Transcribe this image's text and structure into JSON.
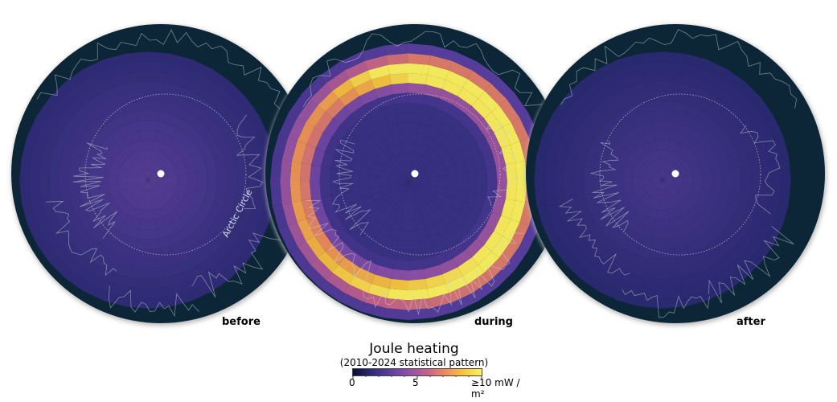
{
  "panels": [
    {
      "label": "before",
      "intensity": 0.22,
      "oval_inner": 0.0,
      "oval_peak": 0.18
    },
    {
      "label": "during",
      "intensity": 1.0,
      "oval_inner": 0.62,
      "oval_peak": 0.8
    },
    {
      "label": "after",
      "intensity": 0.18,
      "oval_inner": 0.0,
      "oval_peak": 0.14
    }
  ],
  "annotation": {
    "arctic_circle": "Arctic Circle"
  },
  "legend": {
    "title": "Joule heating",
    "subtitle": "(2010-2024 statistical pattern)",
    "tick_min": "0",
    "tick_mid": "5",
    "tick_max": "≥10 mW / m²",
    "range": [
      0,
      10
    ],
    "colors": [
      "#0d0c35",
      "#2f2a7a",
      "#5b3ea0",
      "#8c4fa8",
      "#c45f8c",
      "#ef8a5a",
      "#f9c33d",
      "#fff25e"
    ]
  },
  "colors": {
    "ocean": "#0c2637",
    "coast": "#c8d4dc",
    "pole": "#ffffff"
  }
}
